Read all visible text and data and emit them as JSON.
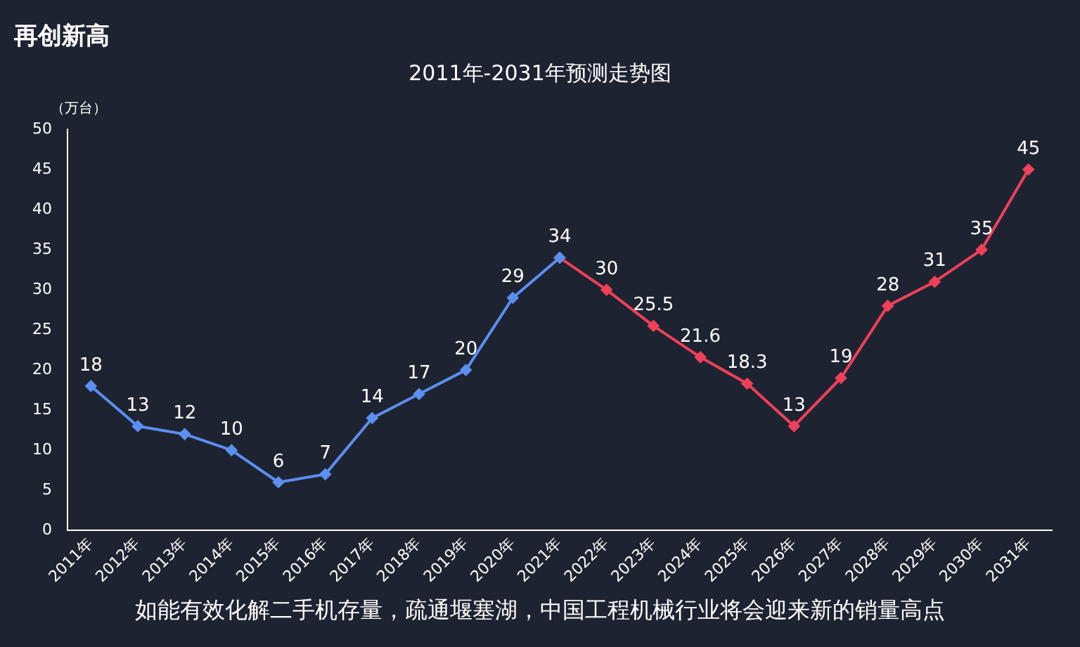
{
  "chart_data": {
    "type": "line",
    "title": "2011年-2031年预测走势图",
    "subtitle": "再创新高",
    "ylabel": "（万台）",
    "categories": [
      "2011年",
      "2012年",
      "2013年",
      "2014年",
      "2015年",
      "2016年",
      "2017年",
      "2018年",
      "2019年",
      "2020年",
      "2021年",
      "2022年",
      "2023年",
      "2024年",
      "2025年",
      "2026年",
      "2027年",
      "2028年",
      "2029年",
      "2030年",
      "2031年"
    ],
    "series": [
      {
        "color": "#5b8ff0",
        "values": [
          18,
          13,
          12,
          10,
          6,
          7,
          14,
          17,
          20,
          29,
          34,
          null,
          null,
          null,
          null,
          null,
          null,
          null,
          null,
          null,
          null
        ],
        "value_labels": [
          "18",
          "13",
          "12",
          "10",
          "6",
          "7",
          "14",
          "17",
          "20",
          "29",
          "34",
          null,
          null,
          null,
          null,
          null,
          null,
          null,
          null,
          null,
          null
        ]
      },
      {
        "color": "#f0405a",
        "values": [
          null,
          null,
          null,
          null,
          null,
          null,
          null,
          null,
          null,
          null,
          34,
          30,
          25.5,
          21.6,
          18.3,
          13,
          19,
          28,
          31,
          35,
          45
        ],
        "value_labels": [
          null,
          null,
          null,
          null,
          null,
          null,
          null,
          null,
          null,
          null,
          null,
          "30",
          "25.5",
          "21.6",
          "18.3",
          "13",
          "19",
          "28",
          "31",
          "35",
          "45"
        ]
      }
    ],
    "ylim": [
      0,
      50
    ],
    "yticks": [
      0,
      5,
      10,
      15,
      20,
      25,
      30,
      35,
      40,
      45,
      50
    ],
    "grid": false,
    "legend": false,
    "marker": "diamond",
    "line_style": "solid",
    "annotations": [
      "如能有效化解二手机存量，疏通堰塞湖，中国工程机械行业将会迎来新的销量高点"
    ]
  }
}
